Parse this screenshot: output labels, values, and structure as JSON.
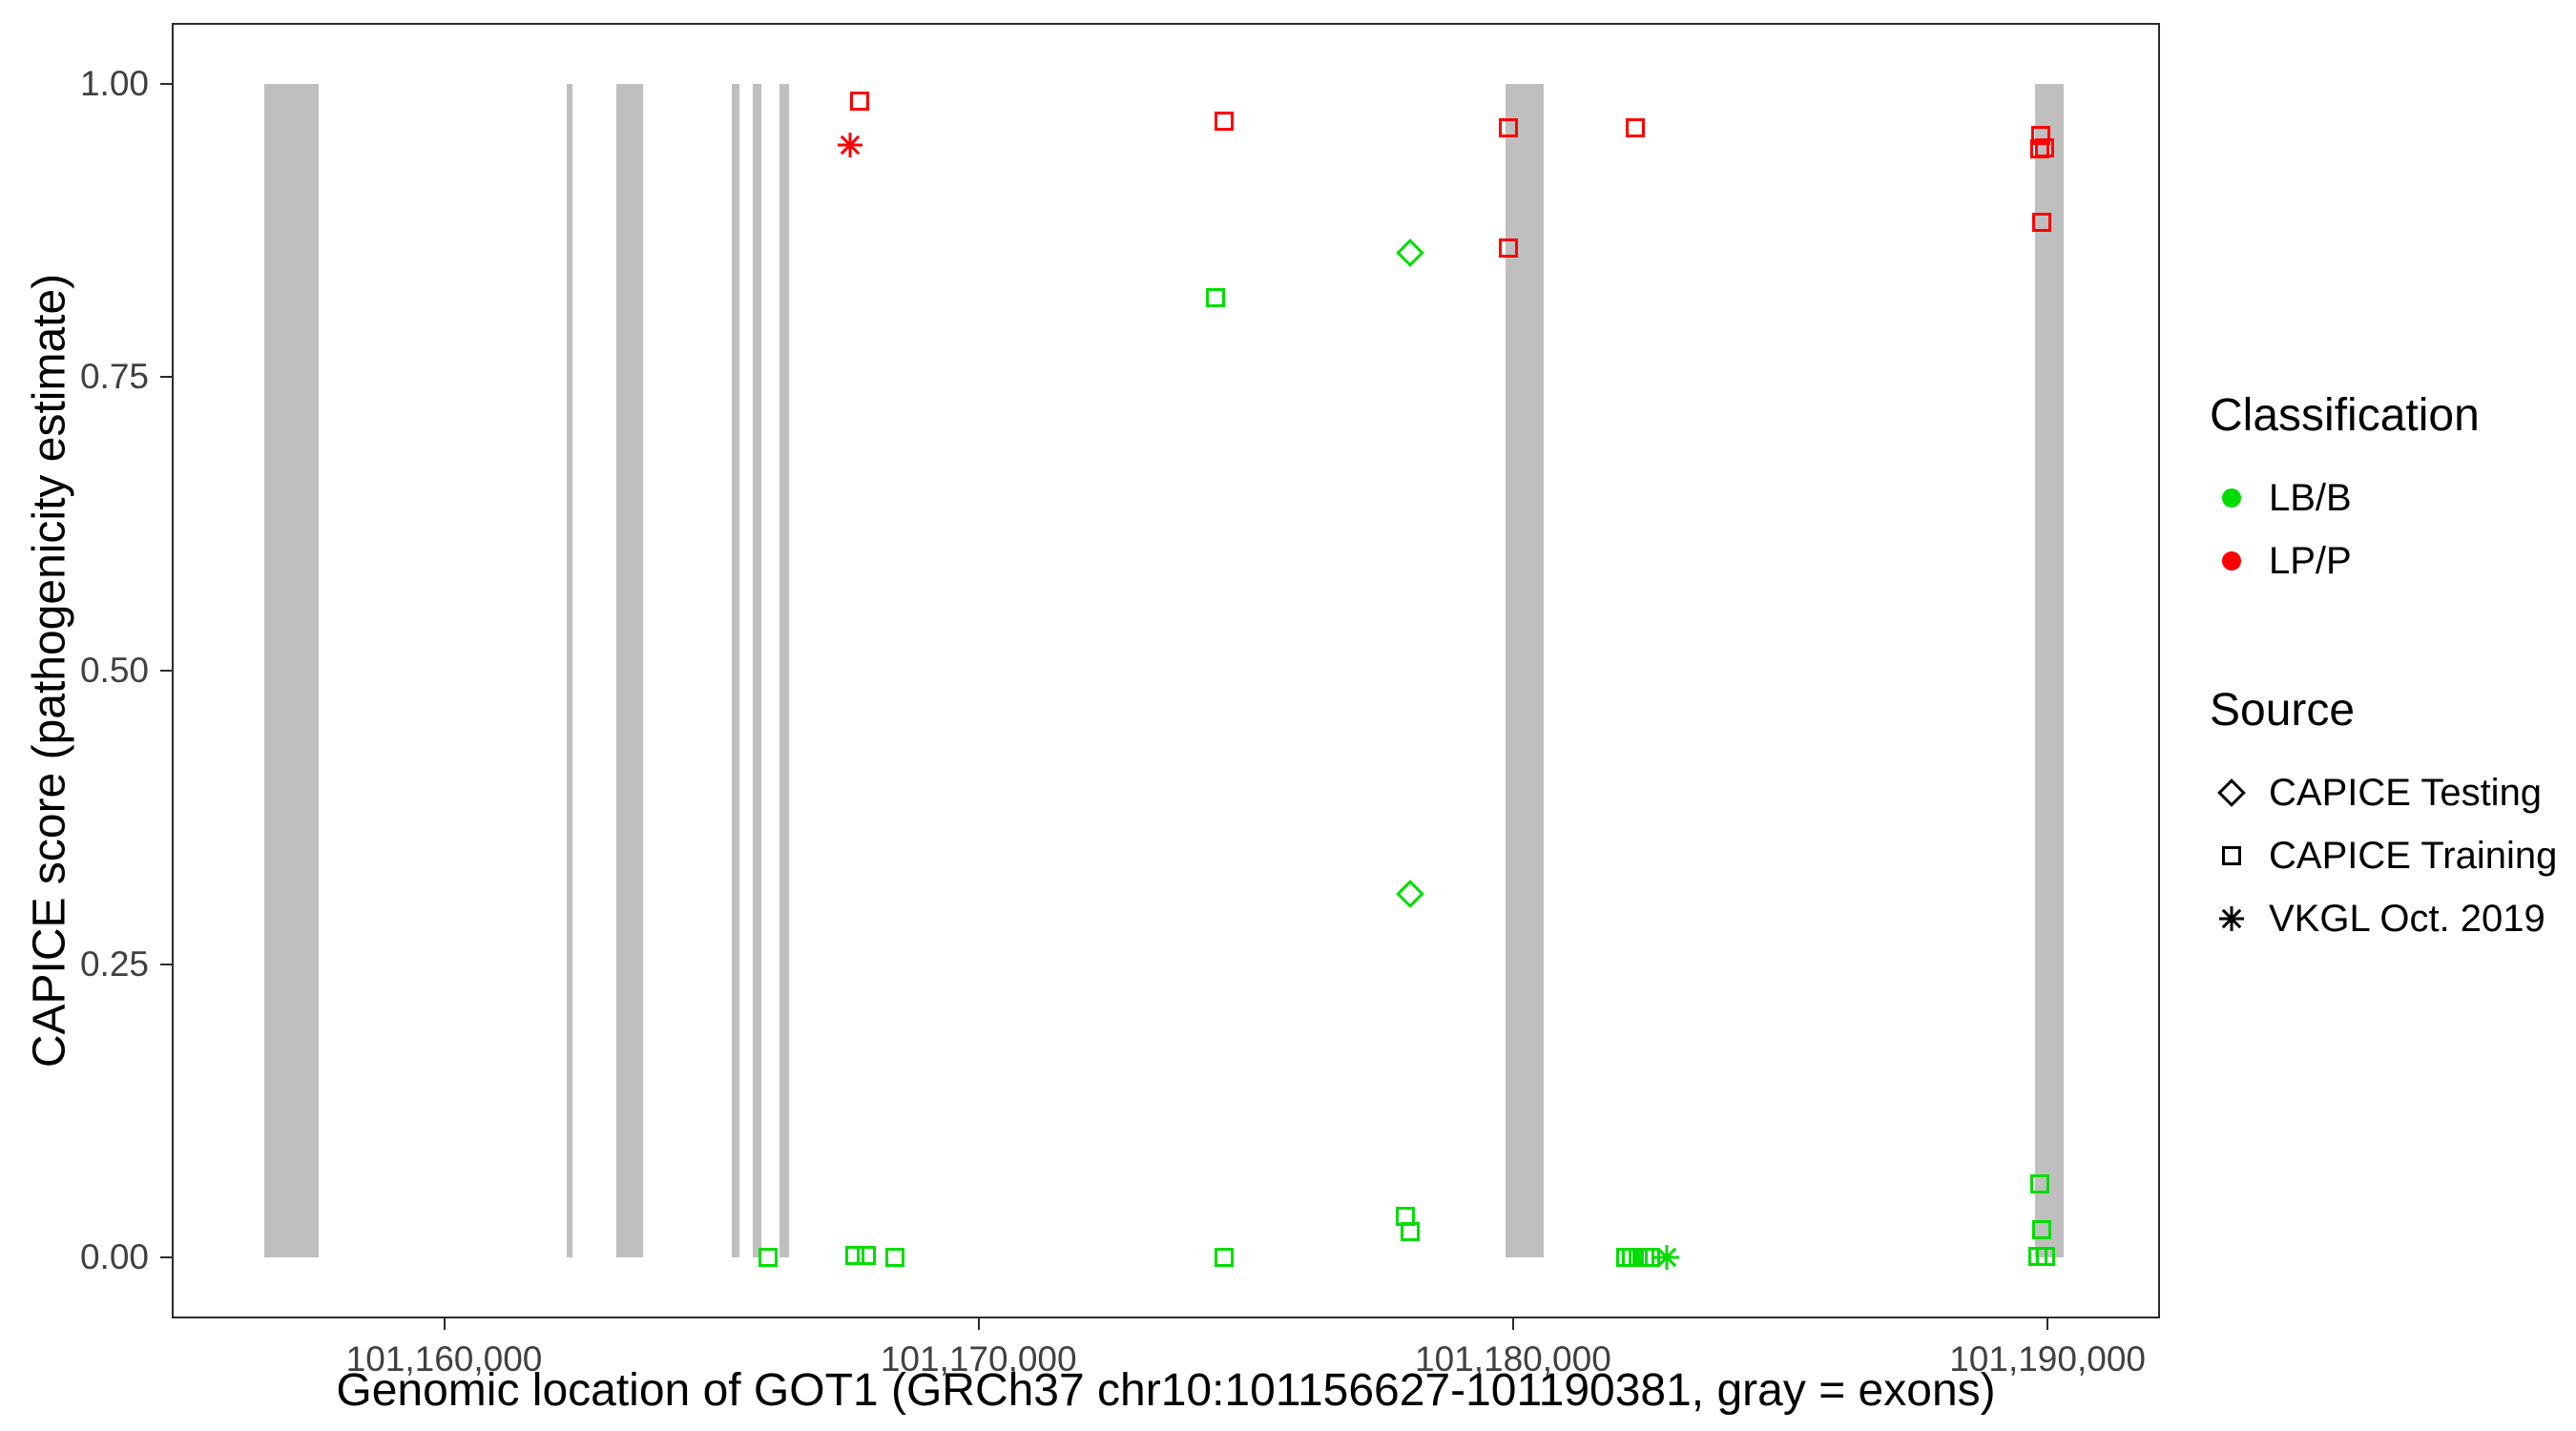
{
  "chart_data": {
    "type": "scatter",
    "title": "",
    "xlabel": "Genomic location of GOT1 (GRCh37 chr10:101156627-101190381, gray = exons)",
    "ylabel": "CAPICE score (pathogenicity estimate)",
    "grid": false,
    "legend_position": "right",
    "xlim": [
      101156627,
      101190381
    ],
    "ylim": [
      0,
      1
    ],
    "x_domain": [
      101154939,
      101192069
    ],
    "y_domain": [
      -0.05,
      1.05
    ],
    "x_ticks": [
      {
        "value": 101160000,
        "label": "101,160,000"
      },
      {
        "value": 101170000,
        "label": "101,170,000"
      },
      {
        "value": 101180000,
        "label": "101,180,000"
      },
      {
        "value": 101190000,
        "label": "101,190,000"
      }
    ],
    "y_ticks": [
      {
        "value": 0.0,
        "label": "0.00"
      },
      {
        "value": 0.25,
        "label": "0.25"
      },
      {
        "value": 0.5,
        "label": "0.50"
      },
      {
        "value": 0.75,
        "label": "0.75"
      },
      {
        "value": 1.0,
        "label": "1.00"
      }
    ],
    "exon_color": "#bfbfbf",
    "exons": [
      {
        "start": 101156627,
        "end": 101157650
      },
      {
        "start": 101162290,
        "end": 101162400
      },
      {
        "start": 101163230,
        "end": 101163720
      },
      {
        "start": 101165380,
        "end": 101165530
      },
      {
        "start": 101165780,
        "end": 101165930
      },
      {
        "start": 101166280,
        "end": 101166460
      },
      {
        "start": 101179860,
        "end": 101180570
      },
      {
        "start": 101189760,
        "end": 101190300
      }
    ],
    "colors": {
      "LB/B": "#00dd00",
      "LP/P": "#ff0000"
    },
    "shapes": {
      "CAPICE Testing": "diamond",
      "CAPICE Training": "square",
      "VKGL Oct. 2019": "asterisk"
    },
    "points": [
      {
        "x": 101167770,
        "y": 0.985,
        "cls": "LP/P",
        "src": "CAPICE Training"
      },
      {
        "x": 101167590,
        "y": 0.948,
        "cls": "LP/P",
        "src": "VKGL Oct. 2019"
      },
      {
        "x": 101174590,
        "y": 0.968,
        "cls": "LP/P",
        "src": "CAPICE Training"
      },
      {
        "x": 101179920,
        "y": 0.962,
        "cls": "LP/P",
        "src": "CAPICE Training"
      },
      {
        "x": 101179920,
        "y": 0.86,
        "cls": "LP/P",
        "src": "CAPICE Training"
      },
      {
        "x": 101182290,
        "y": 0.962,
        "cls": "LP/P",
        "src": "CAPICE Training"
      },
      {
        "x": 101189880,
        "y": 0.956,
        "cls": "LP/P",
        "src": "CAPICE Training"
      },
      {
        "x": 101189950,
        "y": 0.945,
        "cls": "LP/P",
        "src": "CAPICE Training"
      },
      {
        "x": 101189850,
        "y": 0.944,
        "cls": "LP/P",
        "src": "CAPICE Training"
      },
      {
        "x": 101189900,
        "y": 0.882,
        "cls": "LP/P",
        "src": "CAPICE Training"
      },
      {
        "x": 101178080,
        "y": 0.856,
        "cls": "LB/B",
        "src": "CAPICE Testing"
      },
      {
        "x": 101174440,
        "y": 0.818,
        "cls": "LB/B",
        "src": "CAPICE Training"
      },
      {
        "x": 101178080,
        "y": 0.31,
        "cls": "LB/B",
        "src": "CAPICE Testing"
      },
      {
        "x": 101166060,
        "y": 0.0,
        "cls": "LB/B",
        "src": "CAPICE Training"
      },
      {
        "x": 101167680,
        "y": 0.002,
        "cls": "LB/B",
        "src": "CAPICE Training"
      },
      {
        "x": 101167900,
        "y": 0.002,
        "cls": "LB/B",
        "src": "CAPICE Training"
      },
      {
        "x": 101168430,
        "y": 0.0,
        "cls": "LB/B",
        "src": "CAPICE Training"
      },
      {
        "x": 101174590,
        "y": 0.0,
        "cls": "LB/B",
        "src": "CAPICE Training"
      },
      {
        "x": 101177990,
        "y": 0.035,
        "cls": "LB/B",
        "src": "CAPICE Training"
      },
      {
        "x": 101178080,
        "y": 0.022,
        "cls": "LB/B",
        "src": "CAPICE Training"
      },
      {
        "x": 101182100,
        "y": 0.0,
        "cls": "LB/B",
        "src": "CAPICE Training"
      },
      {
        "x": 101182220,
        "y": 0.0,
        "cls": "LB/B",
        "src": "CAPICE Training"
      },
      {
        "x": 101182340,
        "y": 0.0,
        "cls": "LB/B",
        "src": "CAPICE Training"
      },
      {
        "x": 101182460,
        "y": 0.0,
        "cls": "LB/B",
        "src": "CAPICE Training"
      },
      {
        "x": 101182580,
        "y": 0.0,
        "cls": "LB/B",
        "src": "CAPICE Training"
      },
      {
        "x": 101182880,
        "y": 0.0,
        "cls": "LB/B",
        "src": "VKGL Oct. 2019"
      },
      {
        "x": 101189860,
        "y": 0.063,
        "cls": "LB/B",
        "src": "CAPICE Training"
      },
      {
        "x": 101189900,
        "y": 0.024,
        "cls": "LB/B",
        "src": "CAPICE Training"
      },
      {
        "x": 101189820,
        "y": 0.001,
        "cls": "LB/B",
        "src": "CAPICE Training"
      },
      {
        "x": 101189960,
        "y": 0.001,
        "cls": "LB/B",
        "src": "CAPICE Training"
      }
    ]
  },
  "legend": {
    "classification": {
      "title": "Classification",
      "items": [
        {
          "label": "LB/B",
          "color_key": "LB/B"
        },
        {
          "label": "LP/P",
          "color_key": "LP/P"
        }
      ]
    },
    "source": {
      "title": "Source",
      "items": [
        {
          "label": "CAPICE Testing",
          "shape": "diamond"
        },
        {
          "label": "CAPICE Training",
          "shape": "square"
        },
        {
          "label": "VKGL Oct. 2019",
          "shape": "asterisk"
        }
      ]
    }
  }
}
